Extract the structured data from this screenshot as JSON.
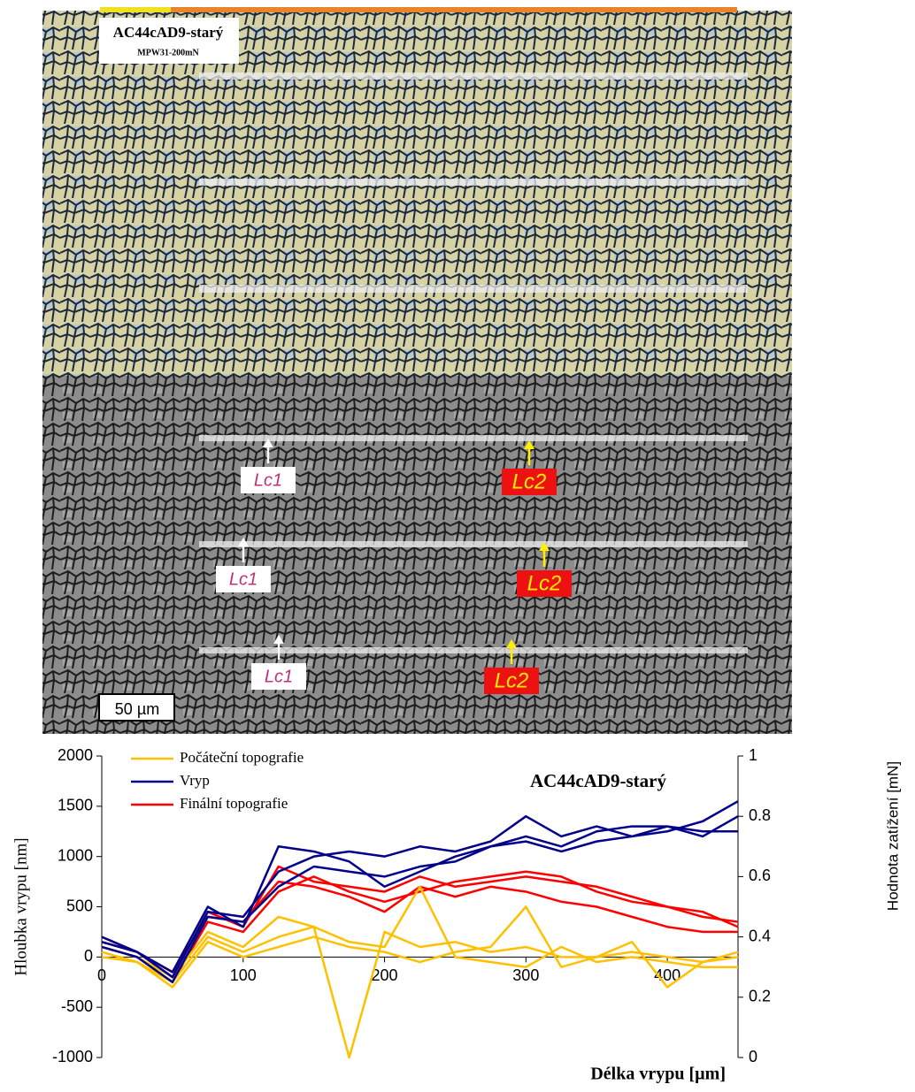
{
  "image": {
    "title": "AC44cAD9-starý",
    "subtitle": "MPW31-200mN",
    "markers": [
      "Lc1",
      "Lc2",
      "Lc1",
      "Lc2",
      "Lc1",
      "Lc2"
    ],
    "scale_bar": "50 µm"
  },
  "chart_data": {
    "type": "line",
    "title": "AC44cAD9-starý",
    "x_label": "Délka vrypu [µm]",
    "y_label": "Hloubka vrypu [nm]",
    "y2_label": "Hodnota zatížení [mN]",
    "x": [
      0,
      25,
      50,
      75,
      100,
      125,
      150,
      175,
      200,
      225,
      250,
      275,
      300,
      325,
      350,
      375,
      400,
      425,
      450
    ],
    "xlim": [
      0,
      450
    ],
    "xticks": [
      0,
      100,
      200,
      300,
      400
    ],
    "ylim": [
      -1000,
      2000
    ],
    "yticks": [
      -1000,
      -500,
      0,
      500,
      1000,
      1500,
      2000
    ],
    "y2lim": [
      0,
      1
    ],
    "y2ticks": [
      0,
      0.2,
      0.4,
      0.6,
      0.8,
      1
    ],
    "series": [
      {
        "name": "Počáteční topografie",
        "color": "#ffc000",
        "values": [
          [
            50,
            -50,
            -250,
            200,
            50,
            200,
            300,
            -1000,
            250,
            100,
            150,
            50,
            100,
            0,
            0,
            50,
            0,
            -50,
            0
          ],
          [
            0,
            -50,
            -300,
            150,
            0,
            100,
            200,
            100,
            50,
            -50,
            50,
            100,
            500,
            -100,
            0,
            150,
            -300,
            -50,
            50
          ],
          [
            100,
            0,
            -200,
            250,
            100,
            400,
            300,
            150,
            100,
            700,
            0,
            -50,
            -100,
            100,
            -50,
            0,
            -50,
            -100,
            -100
          ]
        ]
      },
      {
        "name": "Vryp",
        "color": "#00008b",
        "values": [
          [
            150,
            50,
            -200,
            450,
            400,
            850,
            1000,
            1050,
            1000,
            1100,
            1050,
            1150,
            1400,
            1200,
            1300,
            1200,
            1250,
            1350,
            1550
          ],
          [
            100,
            0,
            -250,
            400,
            350,
            700,
            900,
            850,
            800,
            900,
            950,
            1100,
            1200,
            1100,
            1250,
            1300,
            1300,
            1250,
            1250
          ],
          [
            200,
            50,
            -150,
            500,
            300,
            1100,
            1050,
            950,
            700,
            850,
            1000,
            1100,
            1150,
            1050,
            1150,
            1200,
            1300,
            1200,
            1400
          ]
        ]
      },
      {
        "name": "Finální topografie",
        "color": "#ff0000",
        "values": [
          [
            200,
            50,
            -200,
            450,
            300,
            900,
            750,
            700,
            650,
            800,
            700,
            750,
            800,
            750,
            700,
            600,
            500,
            450,
            300
          ],
          [
            100,
            0,
            -250,
            350,
            250,
            650,
            800,
            650,
            550,
            650,
            750,
            800,
            850,
            800,
            650,
            550,
            500,
            400,
            350
          ],
          [
            150,
            50,
            -150,
            400,
            350,
            750,
            700,
            600,
            450,
            700,
            600,
            700,
            650,
            550,
            500,
            400,
            300,
            250,
            250
          ]
        ]
      }
    ]
  }
}
